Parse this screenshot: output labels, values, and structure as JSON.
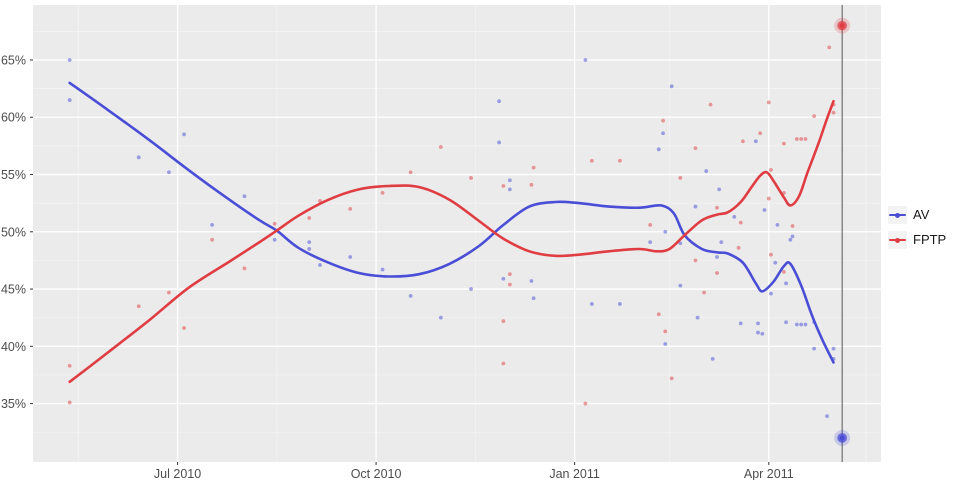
{
  "legend": {
    "items": [
      {
        "label": "AV",
        "color": "#4a4ed6"
      },
      {
        "label": "FPTP",
        "color": "#e03d43"
      }
    ]
  },
  "chart_data": {
    "type": "scatter",
    "title": "",
    "xlabel": "",
    "ylabel": "",
    "grid": true,
    "legend_position": "right",
    "panel_bg": "#ebebeb",
    "grid_major_color": "#ffffff",
    "grid_minor_color": "#f4f4f4",
    "axis_text_color": "#4d4d4d",
    "tick_mark_color": "#333333",
    "x_axis": {
      "type": "date",
      "domain": [
        "2010-04-25",
        "2011-05-23"
      ],
      "ticks": [
        {
          "label": "Jul 2010",
          "date": "2010-07-01"
        },
        {
          "label": "Oct 2010",
          "date": "2010-10-01"
        },
        {
          "label": "Jan 2011",
          "date": "2011-01-01"
        },
        {
          "label": "Apr 2011",
          "date": "2011-04-01"
        }
      ],
      "minor": [
        "2010-05-16",
        "2010-08-16",
        "2010-11-16",
        "2011-02-14",
        "2011-05-16"
      ]
    },
    "y_axis": {
      "domain": [
        29.9,
        69.8
      ],
      "ticks": [
        {
          "label": "35%",
          "value": 35
        },
        {
          "label": "40%",
          "value": 40
        },
        {
          "label": "45%",
          "value": 45
        },
        {
          "label": "50%",
          "value": 50
        },
        {
          "label": "55%",
          "value": 55
        },
        {
          "label": "60%",
          "value": 60
        },
        {
          "label": "65%",
          "value": 65
        }
      ],
      "minor": [
        32.5,
        37.5,
        42.5,
        47.5,
        52.5,
        57.5,
        62.5,
        67.5
      ]
    },
    "series": [
      {
        "name": "AV",
        "color": "#4a4ed6",
        "points": [
          [
            "2010-05-12",
            65.0
          ],
          [
            "2010-05-12",
            61.5
          ],
          [
            "2010-06-13",
            56.5
          ],
          [
            "2010-06-27",
            55.2
          ],
          [
            "2010-07-04",
            58.5
          ],
          [
            "2010-07-17",
            50.6
          ],
          [
            "2010-08-01",
            53.1
          ],
          [
            "2010-08-15",
            49.3
          ],
          [
            "2010-08-31",
            49.1
          ],
          [
            "2010-08-31",
            48.5
          ],
          [
            "2010-09-05",
            47.1
          ],
          [
            "2010-09-19",
            47.8
          ],
          [
            "2010-10-04",
            46.7
          ],
          [
            "2010-10-17",
            44.4
          ],
          [
            "2010-10-31",
            42.5
          ],
          [
            "2010-11-14",
            45.0
          ],
          [
            "2010-11-27",
            61.4
          ],
          [
            "2010-11-27",
            57.8
          ],
          [
            "2010-11-29",
            45.9
          ],
          [
            "2010-12-02",
            54.5
          ],
          [
            "2010-12-02",
            53.7
          ],
          [
            "2010-12-12",
            45.7
          ],
          [
            "2010-12-13",
            44.2
          ],
          [
            "2011-01-06",
            65.0
          ],
          [
            "2011-01-09",
            43.7
          ],
          [
            "2011-01-22",
            43.7
          ],
          [
            "2011-02-05",
            49.1
          ],
          [
            "2011-02-09",
            57.2
          ],
          [
            "2011-02-11",
            58.6
          ],
          [
            "2011-02-12",
            50.0
          ],
          [
            "2011-02-12",
            40.2
          ],
          [
            "2011-02-15",
            62.7
          ],
          [
            "2011-02-19",
            49.0
          ],
          [
            "2011-02-19",
            45.3
          ],
          [
            "2011-02-26",
            52.2
          ],
          [
            "2011-02-27",
            42.5
          ],
          [
            "2011-03-03",
            55.3
          ],
          [
            "2011-03-06",
            38.9
          ],
          [
            "2011-03-08",
            47.8
          ],
          [
            "2011-03-09",
            53.7
          ],
          [
            "2011-03-10",
            49.1
          ],
          [
            "2011-03-16",
            51.3
          ],
          [
            "2011-03-19",
            42.0
          ],
          [
            "2011-03-26",
            57.9
          ],
          [
            "2011-03-27",
            42.0
          ],
          [
            "2011-03-27",
            41.2
          ],
          [
            "2011-03-29",
            41.1
          ],
          [
            "2011-03-30",
            51.9
          ],
          [
            "2011-04-02",
            44.6
          ],
          [
            "2011-04-04",
            47.3
          ],
          [
            "2011-04-05",
            50.6
          ],
          [
            "2011-04-09",
            45.5
          ],
          [
            "2011-04-09",
            42.1
          ],
          [
            "2011-04-11",
            49.3
          ],
          [
            "2011-04-12",
            49.6
          ],
          [
            "2011-04-14",
            41.9
          ],
          [
            "2011-04-16",
            41.9
          ],
          [
            "2011-04-18",
            41.9
          ],
          [
            "2011-04-22",
            42.1
          ],
          [
            "2011-04-22",
            39.8
          ],
          [
            "2011-04-28",
            33.9
          ],
          [
            "2011-05-01",
            39.8
          ],
          [
            "2011-05-01",
            38.9
          ]
        ],
        "smooth": [
          [
            "2010-05-12",
            63.0
          ],
          [
            "2010-05-30",
            60.6
          ],
          [
            "2010-06-18",
            58.0
          ],
          [
            "2010-07-06",
            55.4
          ],
          [
            "2010-07-25",
            52.8
          ],
          [
            "2010-08-08",
            51.0
          ],
          [
            "2010-08-16",
            50.1
          ],
          [
            "2010-08-26",
            48.6
          ],
          [
            "2010-09-09",
            47.3
          ],
          [
            "2010-09-23",
            46.4
          ],
          [
            "2010-10-07",
            46.1
          ],
          [
            "2010-10-21",
            46.3
          ],
          [
            "2010-11-04",
            47.2
          ],
          [
            "2010-11-18",
            48.8
          ],
          [
            "2010-11-29",
            50.6
          ],
          [
            "2010-12-11",
            52.2
          ],
          [
            "2010-12-23",
            52.6
          ],
          [
            "2011-01-03",
            52.5
          ],
          [
            "2011-01-17",
            52.2
          ],
          [
            "2011-01-31",
            52.1
          ],
          [
            "2011-02-10",
            52.3
          ],
          [
            "2011-02-16",
            51.6
          ],
          [
            "2011-02-21",
            49.7
          ],
          [
            "2011-03-01",
            48.5
          ],
          [
            "2011-03-08",
            48.2
          ],
          [
            "2011-03-13",
            48.1
          ],
          [
            "2011-03-20",
            47.3
          ],
          [
            "2011-03-26",
            45.5
          ],
          [
            "2011-03-29",
            44.8
          ],
          [
            "2011-04-03",
            45.6
          ],
          [
            "2011-04-08",
            47.0
          ],
          [
            "2011-04-11",
            47.2
          ],
          [
            "2011-04-16",
            45.3
          ],
          [
            "2011-04-21",
            42.7
          ],
          [
            "2011-04-26",
            40.5
          ],
          [
            "2011-05-01",
            38.6
          ]
        ]
      },
      {
        "name": "FPTP",
        "color": "#e03d43",
        "points": [
          [
            "2010-05-12",
            38.3
          ],
          [
            "2010-05-12",
            35.1
          ],
          [
            "2010-06-13",
            43.5
          ],
          [
            "2010-06-27",
            44.7
          ],
          [
            "2010-07-04",
            41.6
          ],
          [
            "2010-07-17",
            49.3
          ],
          [
            "2010-08-01",
            46.8
          ],
          [
            "2010-08-15",
            50.7
          ],
          [
            "2010-08-31",
            51.2
          ],
          [
            "2010-09-05",
            52.7
          ],
          [
            "2010-09-19",
            52.0
          ],
          [
            "2010-10-04",
            53.4
          ],
          [
            "2010-10-17",
            55.2
          ],
          [
            "2010-10-31",
            57.4
          ],
          [
            "2010-11-14",
            54.7
          ],
          [
            "2010-11-29",
            54.0
          ],
          [
            "2010-11-29",
            42.2
          ],
          [
            "2010-11-29",
            38.5
          ],
          [
            "2010-12-02",
            46.3
          ],
          [
            "2010-12-02",
            45.4
          ],
          [
            "2010-12-12",
            54.1
          ],
          [
            "2010-12-13",
            55.6
          ],
          [
            "2011-01-06",
            35.0
          ],
          [
            "2011-01-09",
            56.2
          ],
          [
            "2011-01-22",
            56.2
          ],
          [
            "2011-02-05",
            50.6
          ],
          [
            "2011-02-09",
            42.8
          ],
          [
            "2011-02-11",
            59.7
          ],
          [
            "2011-02-12",
            41.3
          ],
          [
            "2011-02-15",
            37.2
          ],
          [
            "2011-02-19",
            54.7
          ],
          [
            "2011-02-26",
            57.3
          ],
          [
            "2011-02-26",
            47.5
          ],
          [
            "2011-03-02",
            44.7
          ],
          [
            "2011-03-05",
            61.1
          ],
          [
            "2011-03-08",
            52.1
          ],
          [
            "2011-03-08",
            46.4
          ],
          [
            "2011-03-18",
            48.6
          ],
          [
            "2011-03-19",
            50.8
          ],
          [
            "2011-03-20",
            57.9
          ],
          [
            "2011-03-28",
            58.6
          ],
          [
            "2011-04-01",
            61.3
          ],
          [
            "2011-04-01",
            52.9
          ],
          [
            "2011-04-02",
            55.4
          ],
          [
            "2011-04-02",
            48.0
          ],
          [
            "2011-04-08",
            57.7
          ],
          [
            "2011-04-08",
            53.4
          ],
          [
            "2011-04-08",
            46.5
          ],
          [
            "2011-04-12",
            50.5
          ],
          [
            "2011-04-14",
            58.1
          ],
          [
            "2011-04-16",
            58.1
          ],
          [
            "2011-04-18",
            58.1
          ],
          [
            "2011-04-22",
            60.1
          ],
          [
            "2011-04-29",
            66.1
          ],
          [
            "2011-05-01",
            61.1
          ],
          [
            "2011-05-01",
            60.4
          ]
        ],
        "smooth": [
          [
            "2010-05-12",
            36.9
          ],
          [
            "2010-05-30",
            39.5
          ],
          [
            "2010-06-18",
            42.3
          ],
          [
            "2010-07-06",
            45.1
          ],
          [
            "2010-07-25",
            47.4
          ],
          [
            "2010-08-08",
            49.1
          ],
          [
            "2010-08-16",
            50.1
          ],
          [
            "2010-08-26",
            51.4
          ],
          [
            "2010-09-09",
            52.8
          ],
          [
            "2010-09-23",
            53.7
          ],
          [
            "2010-10-07",
            54.0
          ],
          [
            "2010-10-21",
            53.9
          ],
          [
            "2010-11-04",
            52.8
          ],
          [
            "2010-11-18",
            50.9
          ],
          [
            "2010-11-29",
            49.4
          ],
          [
            "2010-12-11",
            48.3
          ],
          [
            "2010-12-23",
            47.9
          ],
          [
            "2011-01-03",
            48.0
          ],
          [
            "2011-01-17",
            48.3
          ],
          [
            "2011-01-31",
            48.5
          ],
          [
            "2011-02-08",
            48.3
          ],
          [
            "2011-02-14",
            48.5
          ],
          [
            "2011-02-21",
            49.7
          ],
          [
            "2011-03-01",
            51.0
          ],
          [
            "2011-03-08",
            51.5
          ],
          [
            "2011-03-13",
            51.7
          ],
          [
            "2011-03-19",
            52.6
          ],
          [
            "2011-03-24",
            53.9
          ],
          [
            "2011-03-28",
            54.9
          ],
          [
            "2011-03-31",
            55.2
          ],
          [
            "2011-04-03",
            54.5
          ],
          [
            "2011-04-08",
            53.0
          ],
          [
            "2011-04-11",
            52.3
          ],
          [
            "2011-04-15",
            53.1
          ],
          [
            "2011-04-19",
            55.2
          ],
          [
            "2011-04-24",
            57.7
          ],
          [
            "2011-04-28",
            59.9
          ],
          [
            "2011-05-01",
            61.4
          ]
        ]
      }
    ],
    "annotations": {
      "referendum_line": {
        "date": "2011-05-05",
        "color": "#555555"
      },
      "results": [
        {
          "series": "FPTP",
          "date": "2011-05-05",
          "pct": 68.0,
          "color": "#e03d43"
        },
        {
          "series": "AV",
          "date": "2011-05-05",
          "pct": 32.0,
          "color": "#4a4ed6"
        }
      ]
    }
  }
}
